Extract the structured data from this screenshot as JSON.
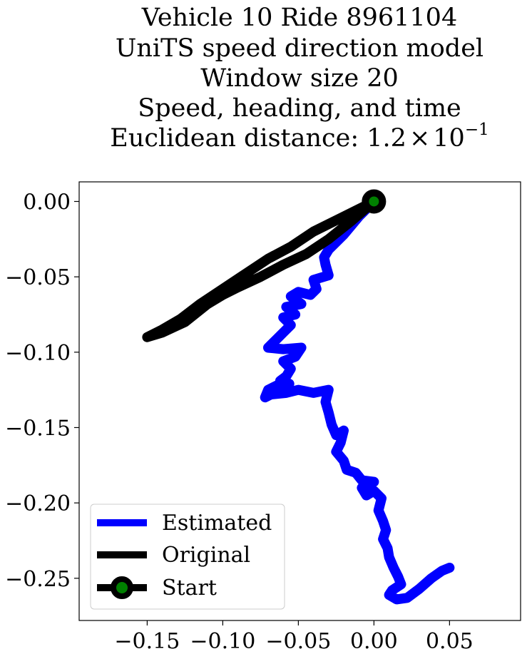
{
  "chart_data": {
    "type": "line",
    "title_lines": [
      "Vehicle 10 Ride 8961104",
      "UniTS speed direction model",
      "Window size 20",
      "Speed, heading, and time",
      "Euclidean distance: "
    ],
    "distance_mantissa": "1.2",
    "distance_times": "×",
    "distance_base": "10",
    "distance_exponent": "−1",
    "xlim": [
      -0.195,
      0.097
    ],
    "ylim": [
      -0.278,
      0.013
    ],
    "x_ticks": [
      -0.15,
      -0.1,
      -0.05,
      0.0,
      0.05
    ],
    "x_tick_labels": [
      "−0.15",
      "−0.10",
      "−0.05",
      "0.00",
      "0.05"
    ],
    "y_ticks": [
      0.0,
      -0.05,
      -0.1,
      -0.15,
      -0.2,
      -0.25
    ],
    "y_tick_labels": [
      "0.00",
      "−0.05",
      "−0.10",
      "−0.15",
      "−0.20",
      "−0.25"
    ],
    "grid": false,
    "legend_position": "lower-left",
    "series": [
      {
        "name": "Estimated",
        "color": "#0000ff",
        "points": [
          [
            0.0,
            0.0
          ],
          [
            -0.01,
            -0.01
          ],
          [
            -0.02,
            -0.022
          ],
          [
            -0.03,
            -0.032
          ],
          [
            -0.033,
            -0.037
          ],
          [
            -0.032,
            -0.042
          ],
          [
            -0.03,
            -0.049
          ],
          [
            -0.04,
            -0.052
          ],
          [
            -0.038,
            -0.058
          ],
          [
            -0.042,
            -0.062
          ],
          [
            -0.05,
            -0.06
          ],
          [
            -0.055,
            -0.063
          ],
          [
            -0.048,
            -0.068
          ],
          [
            -0.058,
            -0.07
          ],
          [
            -0.052,
            -0.075
          ],
          [
            -0.06,
            -0.077
          ],
          [
            -0.055,
            -0.082
          ],
          [
            -0.06,
            -0.087
          ],
          [
            -0.066,
            -0.093
          ],
          [
            -0.07,
            -0.097
          ],
          [
            -0.06,
            -0.098
          ],
          [
            -0.048,
            -0.097
          ],
          [
            -0.052,
            -0.103
          ],
          [
            -0.06,
            -0.106
          ],
          [
            -0.055,
            -0.111
          ],
          [
            -0.058,
            -0.116
          ],
          [
            -0.062,
            -0.119
          ],
          [
            -0.056,
            -0.121
          ],
          [
            -0.064,
            -0.122
          ],
          [
            -0.07,
            -0.125
          ],
          [
            -0.072,
            -0.13
          ],
          [
            -0.068,
            -0.128
          ],
          [
            -0.058,
            -0.127
          ],
          [
            -0.05,
            -0.125
          ],
          [
            -0.04,
            -0.127
          ],
          [
            -0.03,
            -0.125
          ],
          [
            -0.032,
            -0.133
          ],
          [
            -0.03,
            -0.14
          ],
          [
            -0.028,
            -0.148
          ],
          [
            -0.025,
            -0.155
          ],
          [
            -0.02,
            -0.152
          ],
          [
            -0.022,
            -0.16
          ],
          [
            -0.025,
            -0.166
          ],
          [
            -0.02,
            -0.172
          ],
          [
            -0.018,
            -0.178
          ],
          [
            -0.012,
            -0.18
          ],
          [
            -0.008,
            -0.185
          ],
          [
            0.0,
            -0.186
          ],
          [
            -0.008,
            -0.19
          ],
          [
            -0.005,
            -0.195
          ],
          [
            0.0,
            -0.192
          ],
          [
            0.005,
            -0.197
          ],
          [
            0.003,
            -0.205
          ],
          [
            0.006,
            -0.212
          ],
          [
            0.008,
            -0.218
          ],
          [
            0.006,
            -0.224
          ],
          [
            0.009,
            -0.23
          ],
          [
            0.01,
            -0.236
          ],
          [
            0.013,
            -0.243
          ],
          [
            0.016,
            -0.249
          ],
          [
            0.018,
            -0.254
          ],
          [
            0.012,
            -0.258
          ],
          [
            0.01,
            -0.261
          ],
          [
            0.015,
            -0.264
          ],
          [
            0.022,
            -0.263
          ],
          [
            0.03,
            -0.257
          ],
          [
            0.038,
            -0.25
          ],
          [
            0.045,
            -0.245
          ],
          [
            0.05,
            -0.243
          ]
        ]
      },
      {
        "name": "Original",
        "color": "#000000",
        "points": [
          [
            0.0,
            0.0
          ],
          [
            -0.02,
            -0.01
          ],
          [
            -0.04,
            -0.02
          ],
          [
            -0.055,
            -0.03
          ],
          [
            -0.07,
            -0.038
          ],
          [
            -0.085,
            -0.048
          ],
          [
            -0.1,
            -0.058
          ],
          [
            -0.115,
            -0.068
          ],
          [
            -0.128,
            -0.078
          ],
          [
            -0.14,
            -0.085
          ],
          [
            -0.15,
            -0.09
          ],
          [
            -0.14,
            -0.087
          ],
          [
            -0.125,
            -0.08
          ],
          [
            -0.11,
            -0.068
          ],
          [
            -0.1,
            -0.062
          ],
          [
            -0.09,
            -0.057
          ],
          [
            -0.075,
            -0.05
          ],
          [
            -0.06,
            -0.042
          ],
          [
            -0.045,
            -0.035
          ],
          [
            -0.03,
            -0.025
          ],
          [
            -0.015,
            -0.013
          ],
          [
            0.0,
            0.0
          ]
        ]
      }
    ],
    "start_point": {
      "name": "Start",
      "x": 0.0,
      "y": 0.0,
      "edge_color": "#000000",
      "fill_color": "#008000"
    }
  }
}
